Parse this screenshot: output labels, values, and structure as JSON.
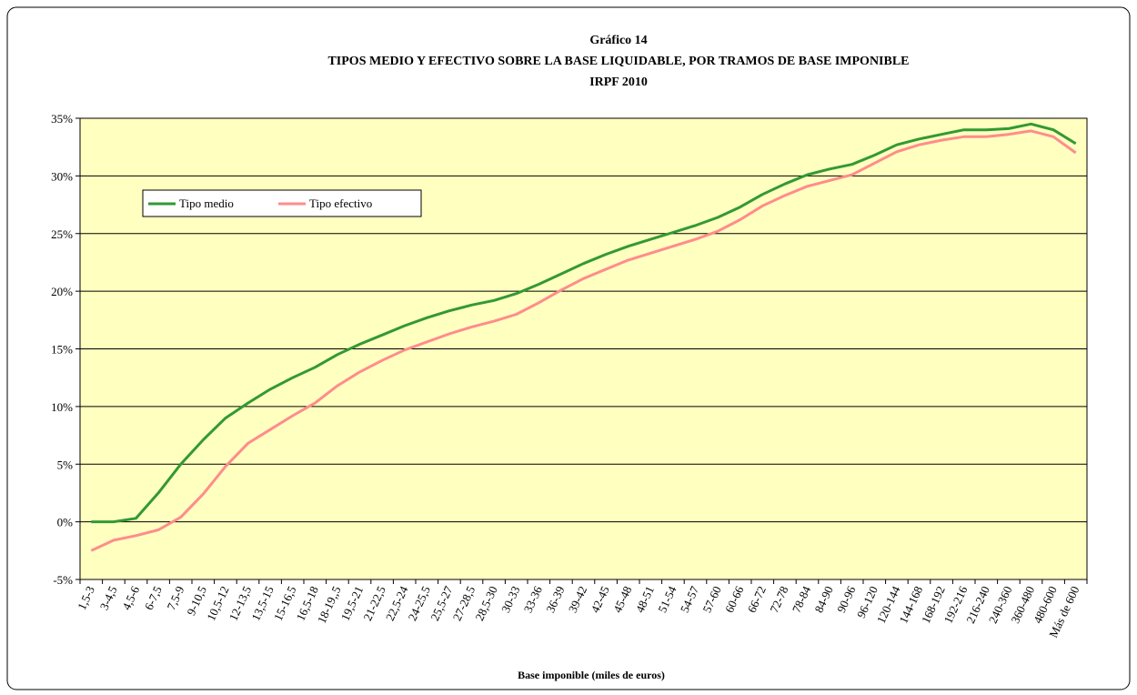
{
  "chart_data": {
    "type": "line",
    "title": "Gráfico 14",
    "subtitle": "TIPOS MEDIO Y EFECTIVO SOBRE LA BASE LIQUIDABLE, POR TRAMOS DE BASE IMPONIBLE",
    "subtitle2": "IRPF 2010",
    "x_label": "Base imponible (miles de euros)",
    "categories": [
      "1,5-3",
      "3-4,5",
      "4,5-6",
      "6-7,5",
      "7,5-9",
      "9-10,5",
      "10,5-12",
      "12-13,5",
      "13,5-15",
      "15-16,5",
      "16,5-18",
      "18-19,,5",
      "19,5-21",
      "21-22,5",
      "22,5-24",
      "24-25,5",
      "25,5-27",
      "27-28,5",
      "28,5-30",
      "30-33",
      "33-36",
      "36-39",
      "39-42",
      "42-45",
      "45-48",
      "48-51",
      "51-54",
      "54-57",
      "57-60",
      "60-66",
      "66-72",
      "72-78",
      "78-84",
      "84-90",
      "90-96",
      "96-120",
      "120-144",
      "144-168",
      "168-192",
      "192-216",
      "216-240",
      "240-360",
      "360-480",
      "480-600",
      "Más de 600"
    ],
    "series": [
      {
        "name": "Tipo medio",
        "color": "#339933",
        "values": [
          0,
          0,
          0.3,
          2.5,
          5,
          7.1,
          9,
          10.3,
          11.5,
          12.5,
          13.4,
          14.5,
          15.4,
          16.2,
          17,
          17.7,
          18.3,
          18.8,
          19.2,
          19.8,
          20.6,
          21.5,
          22.4,
          23.2,
          23.9,
          24.5,
          25.1,
          25.7,
          26.4,
          27.3,
          28.4,
          29.3,
          30.1,
          30.6,
          31,
          31.8,
          32.7,
          33.2,
          33.6,
          34,
          34,
          34.1,
          34.5,
          34,
          32.8
        ]
      },
      {
        "name": "Tipo efectivo",
        "color": "#ff8c8c",
        "values": [
          -2.5,
          -1.6,
          -1.2,
          -0.7,
          0.4,
          2.4,
          4.8,
          6.8,
          8,
          9.2,
          10.3,
          11.8,
          13,
          14,
          14.9,
          15.6,
          16.3,
          16.9,
          17.4,
          18,
          19,
          20.1,
          21.1,
          21.9,
          22.7,
          23.3,
          23.9,
          24.5,
          25.2,
          26.2,
          27.4,
          28.3,
          29.1,
          29.6,
          30.1,
          31.1,
          32.1,
          32.7,
          33.1,
          33.4,
          33.4,
          33.6,
          33.9,
          33.4,
          32
        ]
      }
    ],
    "ylim": [
      -5,
      35
    ],
    "yticks": [
      {
        "value": -5,
        "label": "-5%"
      },
      {
        "value": 0,
        "label": "0%"
      },
      {
        "value": 5,
        "label": "5%"
      },
      {
        "value": 10,
        "label": "10%"
      },
      {
        "value": 15,
        "label": "15%"
      },
      {
        "value": 20,
        "label": "20%"
      },
      {
        "value": 25,
        "label": "25%"
      },
      {
        "value": 30,
        "label": "30%"
      },
      {
        "value": 35,
        "label": "35%"
      }
    ],
    "grid": true,
    "legend": "upper left"
  }
}
